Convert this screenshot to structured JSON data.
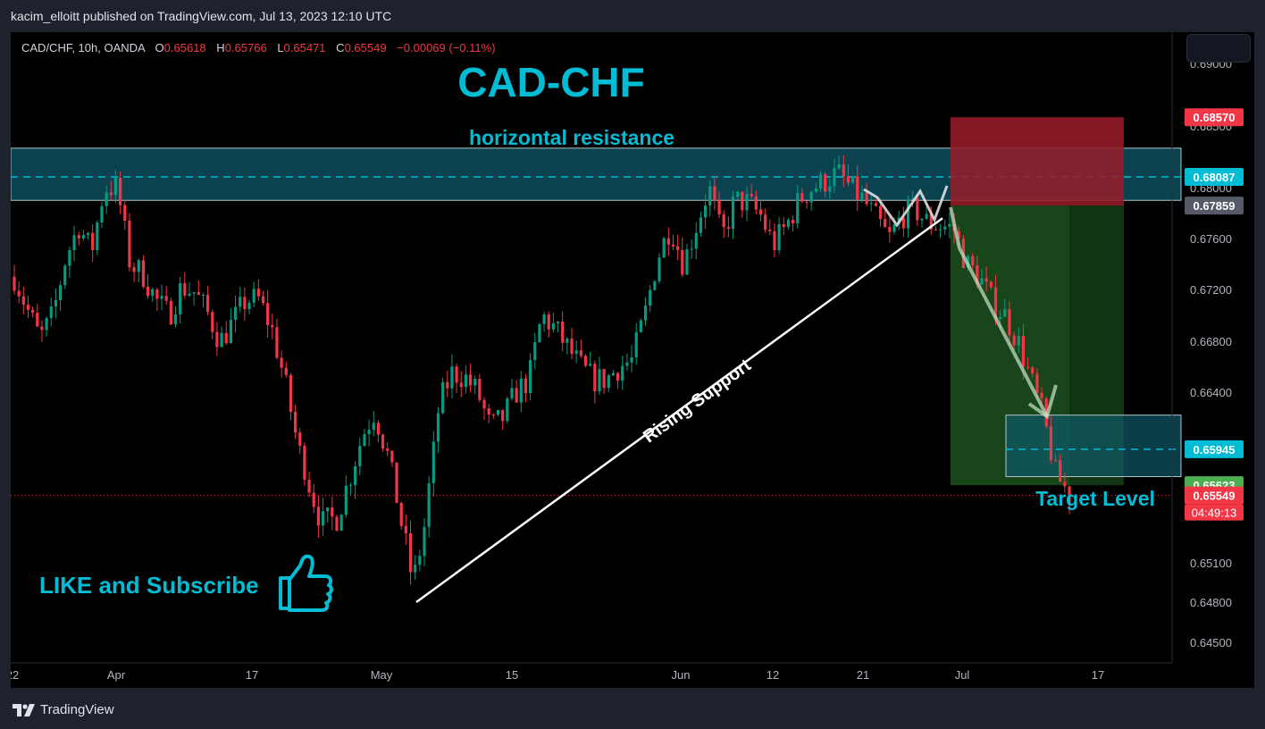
{
  "header": {
    "published": "kacim_elloitt published on TradingView.com, Jul 13, 2023 12:10 UTC"
  },
  "legend": {
    "symbol": "CAD/CHF, 10h, OANDA",
    "o_label": "O",
    "o": "0.65618",
    "h_label": "H",
    "h": "0.65766",
    "l_label": "L",
    "l": "0.65471",
    "c_label": "C",
    "c": "0.65549",
    "change": "−0.00069 (−0.11%)"
  },
  "annotations": {
    "title": "CAD-CHF",
    "resistance_label": "horizontal resistance",
    "support_label": "Rising Support",
    "target_label": "Target Level",
    "cta": "LIKE and Subscribe"
  },
  "footer": {
    "brand": "TradingView"
  },
  "colors": {
    "up": "#089981",
    "down": "#f23645",
    "accent": "#00bcd4",
    "zone": "#0e5a6a",
    "stop": "#9a1b28",
    "profit": "#2e7d32"
  },
  "chart_data": {
    "type": "candlestick",
    "symbol": "CAD/CHF",
    "timeframe": "10h",
    "x_ticks": [
      "22",
      "Apr",
      "17",
      "May",
      "15",
      "Jun",
      "12",
      "21",
      "Jul",
      "17"
    ],
    "y_ticks": [
      0.645,
      0.648,
      0.651,
      0.664,
      0.668,
      0.672,
      0.676,
      0.68,
      0.685,
      0.69
    ],
    "ylim": [
      0.645,
      0.69
    ],
    "y_tick_labels": [
      "0.64500",
      "0.64800",
      "0.65100",
      "0.66400",
      "0.66800",
      "0.67200",
      "0.67600",
      "0.68000",
      "0.68500",
      "0.69000"
    ],
    "price_labels": [
      {
        "value": "0.68570",
        "color": "#f23645"
      },
      {
        "value": "0.68087",
        "color": "#00bcd4"
      },
      {
        "value": "0.67859",
        "color": "#555a66"
      },
      {
        "value": "0.65945",
        "color": "#00bcd4"
      },
      {
        "value": "0.65623",
        "color": "#4caf50"
      },
      {
        "value": "0.65549",
        "color": "#f23645"
      }
    ],
    "countdown": "04:49:13",
    "resistance_zone": [
      0.679,
      0.6832
    ],
    "resistance_mid": 0.68087,
    "target_zone": [
      0.657,
      0.6622
    ],
    "target_mid": 0.65945,
    "rising_support": [
      [
        0.648,
        "May 4"
      ],
      [
        0.6797,
        "Jun 29"
      ]
    ],
    "close": 0.65549,
    "price_path": [
      0.673,
      0.6705,
      0.6682,
      0.67,
      0.6745,
      0.677,
      0.675,
      0.68,
      0.68,
      0.674,
      0.6732,
      0.6712,
      0.67,
      0.6722,
      0.6718,
      0.6702,
      0.668,
      0.6695,
      0.6712,
      0.6712,
      0.669,
      0.665,
      0.66,
      0.656,
      0.6535,
      0.654,
      0.6565,
      0.6605,
      0.6625,
      0.659,
      0.654,
      0.6495,
      0.654,
      0.663,
      0.6655,
      0.6652,
      0.664,
      0.6612,
      0.662,
      0.664,
      0.665,
      0.67,
      0.669,
      0.6675,
      0.666,
      0.665,
      0.665,
      0.666,
      0.6665,
      0.67,
      0.6745,
      0.677,
      0.674,
      0.677,
      0.68,
      0.676,
      0.679,
      0.6788,
      0.6778,
      0.6755,
      0.677,
      0.679,
      0.68,
      0.6805,
      0.6812,
      0.68,
      0.679,
      0.6775,
      0.676,
      0.6778,
      0.6783,
      0.6772,
      0.677,
      0.6768,
      0.674,
      0.673,
      0.671,
      0.67,
      0.668,
      0.665,
      0.662,
      0.657,
      0.6555
    ]
  }
}
